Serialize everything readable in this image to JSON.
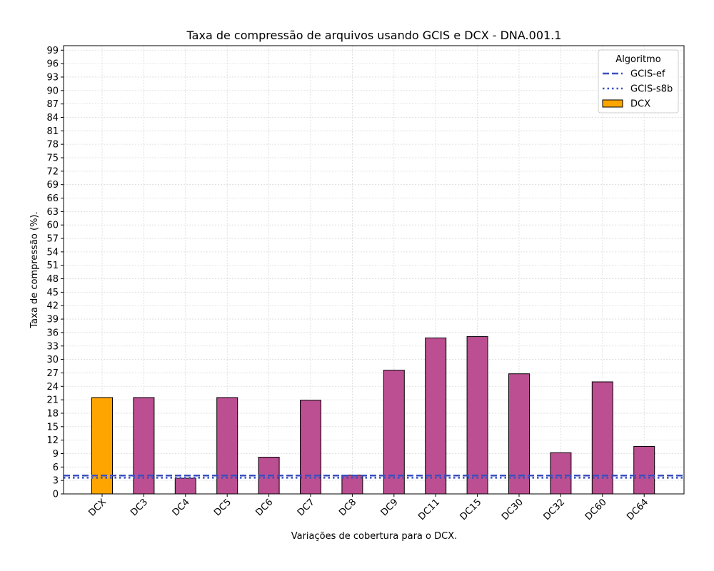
{
  "chart_data": {
    "type": "bar",
    "title": "Taxa de compressão de arquivos usando GCIS e DCX -  DNA.001.1",
    "xlabel": "Variações de cobertura para o DCX.",
    "ylabel": "Taxa de compressão (%).",
    "ylim": [
      0,
      100
    ],
    "yticks": [
      0,
      3,
      6,
      9,
      12,
      15,
      18,
      21,
      24,
      27,
      30,
      33,
      36,
      39,
      42,
      45,
      48,
      51,
      54,
      57,
      60,
      63,
      66,
      69,
      72,
      75,
      78,
      81,
      84,
      87,
      90,
      93,
      96,
      99
    ],
    "categories": [
      "DCX",
      "DC3",
      "DC4",
      "DC5",
      "DC6",
      "DC7",
      "DC8",
      "DC9",
      "DC11",
      "DC15",
      "DC30",
      "DC32",
      "DC60",
      "DC64"
    ],
    "values": [
      21.5,
      21.5,
      3.5,
      21.5,
      8.2,
      20.9,
      4.2,
      27.6,
      34.8,
      35.1,
      26.8,
      9.2,
      25.0,
      10.6
    ],
    "bar_colors": [
      "#ffa500",
      "#bb4f91",
      "#bb4f91",
      "#bb4f91",
      "#bb4f91",
      "#bb4f91",
      "#bb4f91",
      "#bb4f91",
      "#bb4f91",
      "#bb4f91",
      "#bb4f91",
      "#bb4f91",
      "#bb4f91",
      "#bb4f91"
    ],
    "reference_lines": [
      {
        "name": "GCIS-ef",
        "value": 4.1,
        "style": "dashed",
        "color": "#3a4fbf"
      },
      {
        "name": "GCIS-s8b",
        "value": 3.6,
        "style": "dotted",
        "color": "#3a4fbf"
      }
    ],
    "grid": true,
    "legend": {
      "title": "Algoritmo",
      "placement": "top-right",
      "entries": [
        {
          "name": "GCIS-ef",
          "kind": "dashed-line",
          "color": "#3a4fbf"
        },
        {
          "name": "GCIS-s8b",
          "kind": "dotted-line",
          "color": "#3a4fbf"
        },
        {
          "name": "DCX",
          "kind": "bar",
          "color": "#ffa500"
        }
      ]
    }
  }
}
